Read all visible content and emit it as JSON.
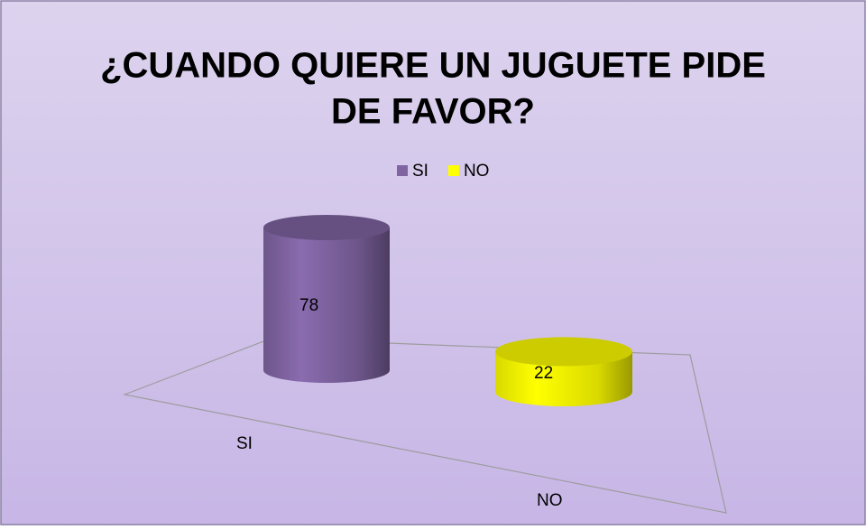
{
  "chart_data": {
    "type": "bar",
    "title": [
      "¿CUANDO QUIERE UN JUGUETE PIDE",
      "DE FAVOR?"
    ],
    "categories": [
      "SI",
      "NO"
    ],
    "values": [
      78,
      22
    ],
    "colors": [
      "#8064a2",
      "#ffff00"
    ],
    "legend": "top"
  }
}
